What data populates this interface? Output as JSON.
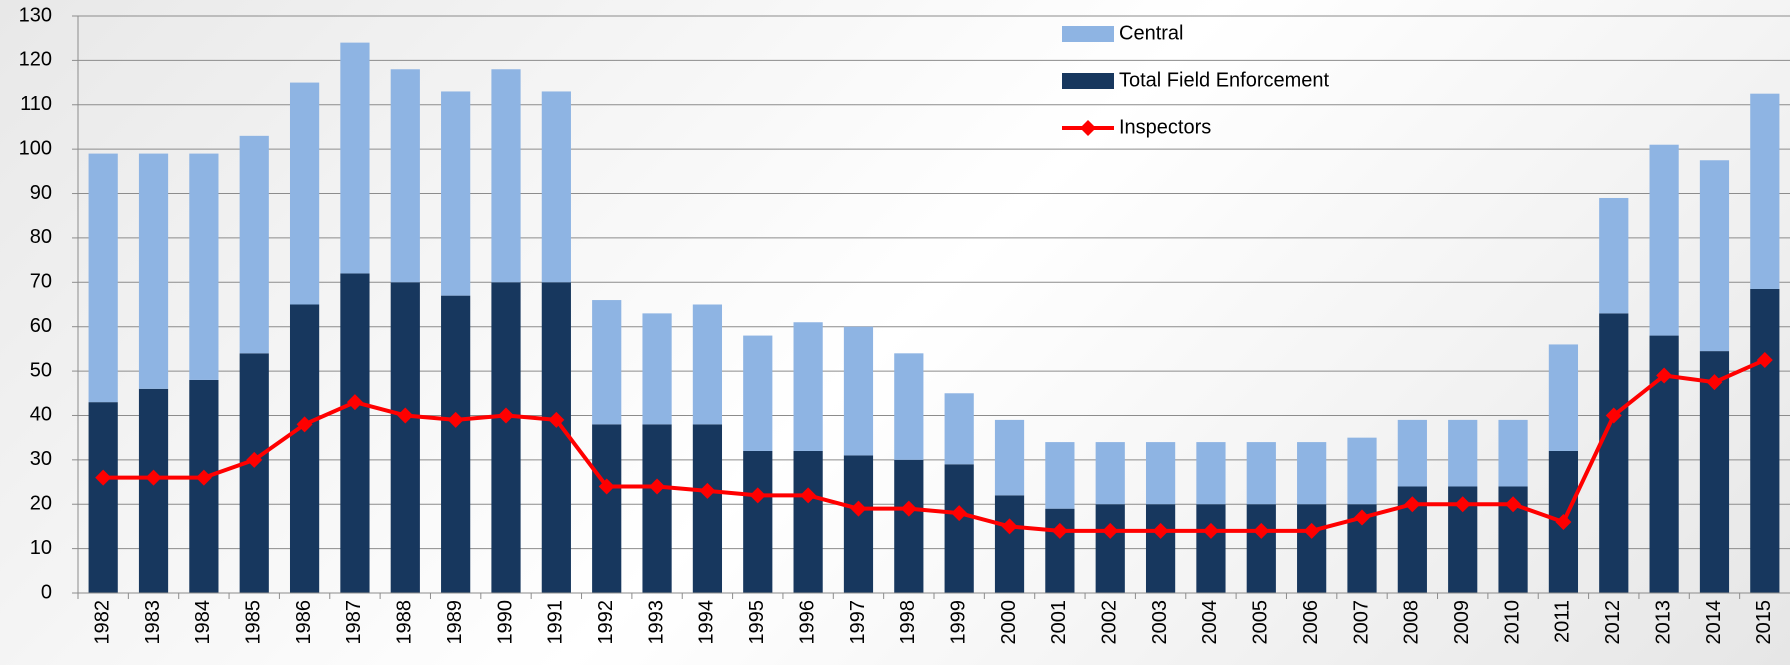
{
  "chart_data": {
    "type": "stacked_bar_line",
    "categories": [
      "1982",
      "1983",
      "1984",
      "1985",
      "1986",
      "1987",
      "1988",
      "1989",
      "1990",
      "1991",
      "1992",
      "1993",
      "1994",
      "1995",
      "1996",
      "1997",
      "1998",
      "1999",
      "2000",
      "2001",
      "2002",
      "2003",
      "2004",
      "2005",
      "2006",
      "2007",
      "2008",
      "2009",
      "2010",
      "2011",
      "2012",
      "2013",
      "2014",
      "2015"
    ],
    "series": [
      {
        "name": "Central",
        "type": "bar",
        "color": "#8eb4e3",
        "values": [
          56,
          53,
          51,
          49,
          50,
          52,
          48,
          46,
          48,
          43,
          28,
          25,
          27,
          26,
          29,
          29,
          24,
          16,
          17,
          15,
          14,
          14,
          14,
          14,
          14,
          15,
          15,
          15,
          15,
          24,
          26,
          43,
          43,
          44
        ]
      },
      {
        "name": "Total Field Enforcement",
        "type": "bar",
        "color": "#17375e",
        "values": [
          43,
          46,
          48,
          54,
          65,
          72,
          70,
          67,
          70,
          70,
          38,
          38,
          38,
          32,
          32,
          31,
          30,
          29,
          22,
          19,
          20,
          20,
          20,
          20,
          20,
          20,
          24,
          24,
          24,
          32,
          63,
          58,
          54.5,
          68.5
        ]
      },
      {
        "name": "Inspectors",
        "type": "line",
        "color": "#ff0000",
        "values": [
          26,
          26,
          26,
          30,
          38,
          43,
          40,
          39,
          40,
          39,
          24,
          24,
          23,
          22,
          22,
          19,
          19,
          18,
          15,
          14,
          14,
          14,
          14,
          14,
          14,
          17,
          20,
          20,
          20,
          16,
          40,
          49,
          47.5,
          52.5
        ]
      }
    ],
    "ylim": [
      0,
      130
    ],
    "yticks": [
      0,
      10,
      20,
      30,
      40,
      50,
      60,
      70,
      80,
      90,
      100,
      110,
      120,
      130
    ],
    "grid": true
  }
}
